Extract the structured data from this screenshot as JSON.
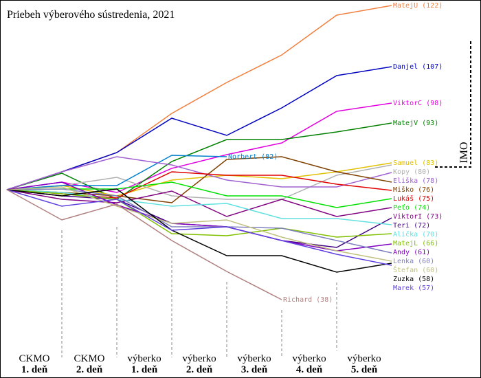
{
  "chart_data": {
    "type": "line",
    "title": "Priebeh výberového sústredenia, 2021",
    "annotation": "IMO",
    "categories": [
      null,
      [
        "CKMO",
        "1. deň"
      ],
      [
        "CKMO",
        "2. deň"
      ],
      [
        "výberko",
        "1. deň"
      ],
      [
        "výberko",
        "2. deň"
      ],
      [
        "výberko",
        "3. deň"
      ],
      [
        "výberko",
        "4. deň"
      ],
      [
        "výberko",
        "5. deň"
      ]
    ],
    "ylim": [
      -270,
      276
    ],
    "series": [
      {
        "name": "MatejU (122)",
        "color": "#f08040",
        "values": [
          0,
          26,
          54,
          111,
          156,
          196,
          254,
          268
        ]
      },
      {
        "name": "Danjel (107)",
        "color": "#0000c0",
        "values": [
          0,
          26,
          54,
          104,
          79,
          119,
          166,
          179
        ]
      },
      {
        "name": "ViktorC (98)",
        "color": "#e000e0",
        "values": [
          0,
          11,
          -4,
          31,
          51,
          68,
          114,
          126
        ]
      },
      {
        "name": "MatejV (93)",
        "color": "#008000",
        "values": [
          0,
          24,
          -14,
          41,
          73,
          73,
          84,
          97
        ]
      },
      {
        "name": "Samuel (83)",
        "color": "#e0c000",
        "values": [
          0,
          6,
          -9,
          14,
          21,
          16,
          26,
          39
        ]
      },
      {
        "name": "Kopy (80)",
        "color": "#b0b0b0",
        "values": [
          0,
          6,
          18,
          -9,
          -14,
          -14,
          21,
          36
        ]
      },
      {
        "name": "Norbert (82)",
        "color": "#0080d0",
        "values": [
          0,
          6,
          6,
          50,
          48,
          null,
          null,
          null
        ]
      },
      {
        "name": "Eliška (78)",
        "color": "#a060d0",
        "values": [
          0,
          26,
          48,
          36,
          14,
          4,
          4,
          25
        ]
      },
      {
        "name": "Miško (76)",
        "color": "#804000",
        "values": [
          0,
          -4,
          -9,
          -19,
          44,
          48,
          26,
          11
        ]
      },
      {
        "name": "Lukáš (75)",
        "color": "#e00000",
        "values": [
          0,
          -6,
          -12,
          26,
          21,
          21,
          8,
          -1
        ]
      },
      {
        "name": "Peťo (74)",
        "color": "#00e000",
        "values": [
          0,
          1,
          1,
          11,
          -9,
          -9,
          -26,
          -13
        ]
      },
      {
        "name": "ViktorI (73)",
        "color": "#800080",
        "values": [
          0,
          -14,
          -19,
          -2,
          -39,
          -14,
          -39,
          -26
        ]
      },
      {
        "name": "Teri (72)",
        "color": "#400080",
        "values": [
          0,
          -9,
          -14,
          -49,
          -54,
          -74,
          -84,
          -41
        ]
      },
      {
        "name": "Alička (70)",
        "color": "#60e0e0",
        "values": [
          0,
          -4,
          -14,
          -24,
          -20,
          -42,
          -42,
          -51
        ]
      },
      {
        "name": "MatejL (66)",
        "color": "#80c000",
        "values": [
          0,
          -6,
          -14,
          -64,
          -67,
          -56,
          -69,
          -64
        ]
      },
      {
        "name": "Andy (61)",
        "color": "#8000c0",
        "values": [
          0,
          11,
          -22,
          -49,
          -54,
          -74,
          -89,
          -79
        ]
      },
      {
        "name": "Lenka (60)",
        "color": "#8080c0",
        "values": [
          0,
          1,
          -9,
          -54,
          -54,
          -56,
          -74,
          -92
        ]
      },
      {
        "name": "Štefan (60)",
        "color": "#c0c080",
        "values": [
          0,
          4,
          -24,
          -49,
          -44,
          -69,
          -89,
          -104
        ]
      },
      {
        "name": "Zuzka (58)",
        "color": "#000000",
        "values": [
          0,
          -9,
          1,
          -59,
          -96,
          -96,
          -120,
          -107
        ]
      },
      {
        "name": "Marek (57)",
        "color": "#6040e0",
        "values": [
          0,
          -24,
          -14,
          -59,
          -54,
          -74,
          -94,
          -110
        ]
      },
      {
        "name": "Richard (38)",
        "color": "#b08080",
        "values": [
          0,
          -44,
          -21,
          -74,
          -119,
          -160,
          null,
          null
        ]
      }
    ]
  }
}
